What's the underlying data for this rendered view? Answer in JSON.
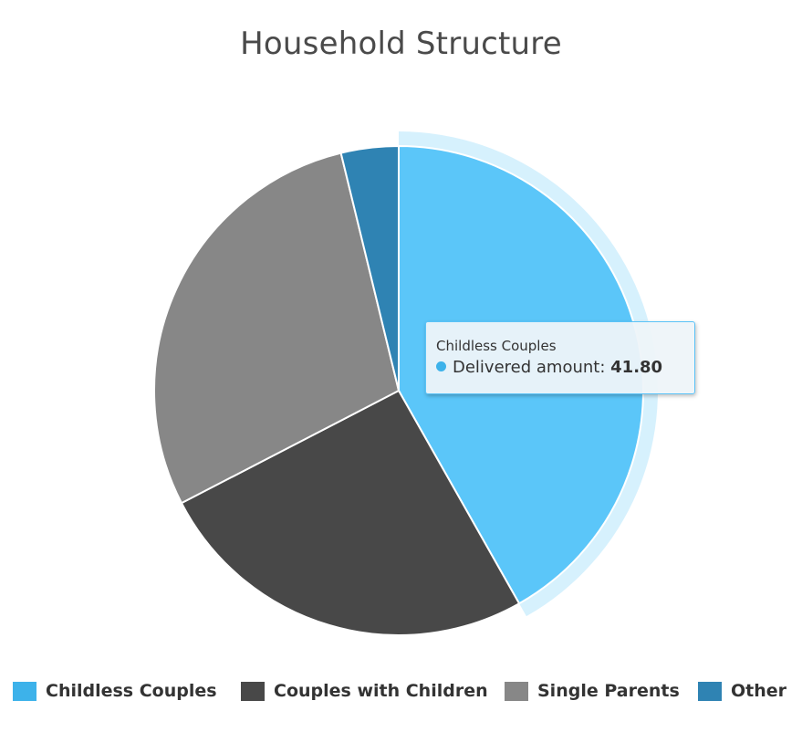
{
  "chart_data": {
    "type": "pie",
    "title": "Household Structure",
    "series_name": "Delivered amount",
    "categories": [
      "Childless Couples",
      "Couples with Children",
      "Single Parents",
      "Other"
    ],
    "values": [
      41.8,
      25.6,
      28.8,
      3.8
    ],
    "colors": [
      "#5bc6f9",
      "#484848",
      "#878787",
      "#2f83b3"
    ],
    "legend_colors": [
      "#3db2ea",
      "#484848",
      "#878787",
      "#2f83b3"
    ],
    "legend_position": "bottom-center",
    "hovered_category": "Childless Couples",
    "tooltip": {
      "category": "Childless Couples",
      "label": "Delivered amount: ",
      "value": "41.80"
    }
  }
}
